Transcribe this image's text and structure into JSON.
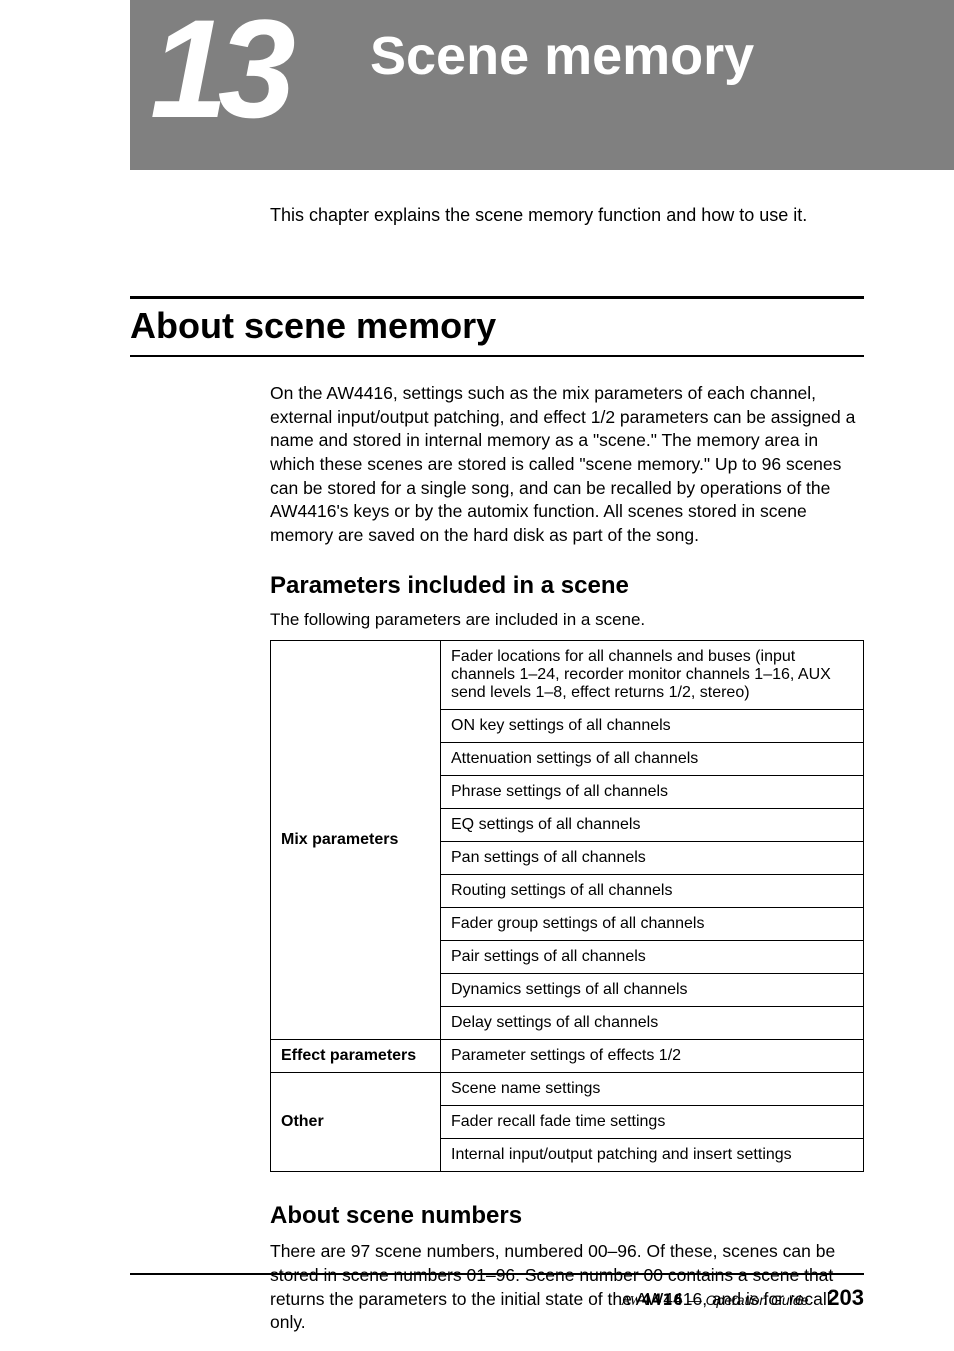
{
  "chapter": {
    "number": "13",
    "title": "Scene memory",
    "banner_bg": "#808080",
    "title_color": "#ffffff"
  },
  "intro": "This chapter explains the scene memory function and how to use it.",
  "section1": {
    "title": "About scene memory",
    "body": "On the AW4416, settings such as the mix parameters of each channel, external input/output patching, and effect 1/2 parameters can be assigned a name and stored in internal memory as a \"scene.\" The memory area in which these scenes are stored is called \"scene memory.\" Up to 96 scenes can be stored for a single song, and can be recalled by operations of the AW4416's keys or by the automix function. All scenes stored in scene memory are saved on the hard disk as part of the song."
  },
  "section2": {
    "title": "Parameters included in a scene",
    "subtitle": "The following parameters are included in a scene.",
    "table": {
      "border_color": "#000000",
      "col1_width": 170,
      "groups": [
        {
          "category": "Mix parameters",
          "rows": [
            "Fader locations for all channels and buses (input channels 1–24, recorder monitor channels 1–16, AUX send levels 1–8, effect returns 1/2, stereo)",
            "ON key settings of all channels",
            "Attenuation settings of all channels",
            "Phrase settings of all channels",
            "EQ settings of all channels",
            "Pan settings of all channels",
            "Routing settings of all channels",
            "Fader group settings of all channels",
            "Pair settings of all channels",
            "Dynamics settings of all channels",
            "Delay settings of all channels"
          ]
        },
        {
          "category": "Effect parameters",
          "rows": [
            "Parameter settings of effects 1/2"
          ]
        },
        {
          "category": "Other",
          "rows": [
            "Scene name settings",
            "Fader recall fade time settings",
            "Internal input/output patching and insert settings"
          ]
        }
      ]
    }
  },
  "section3": {
    "title": "About scene numbers",
    "body": "There are 97 scene numbers, numbered 00–96. Of these, scenes can be stored in scene numbers 01–96. Scene number 00 contains a scene that returns the parameters to the initial state of the AW4416, and is for recall only."
  },
  "footer": {
    "model_prefix": "AW",
    "model_num": "4416",
    "guide_text": "— Operation Guide",
    "page_number": "203"
  }
}
